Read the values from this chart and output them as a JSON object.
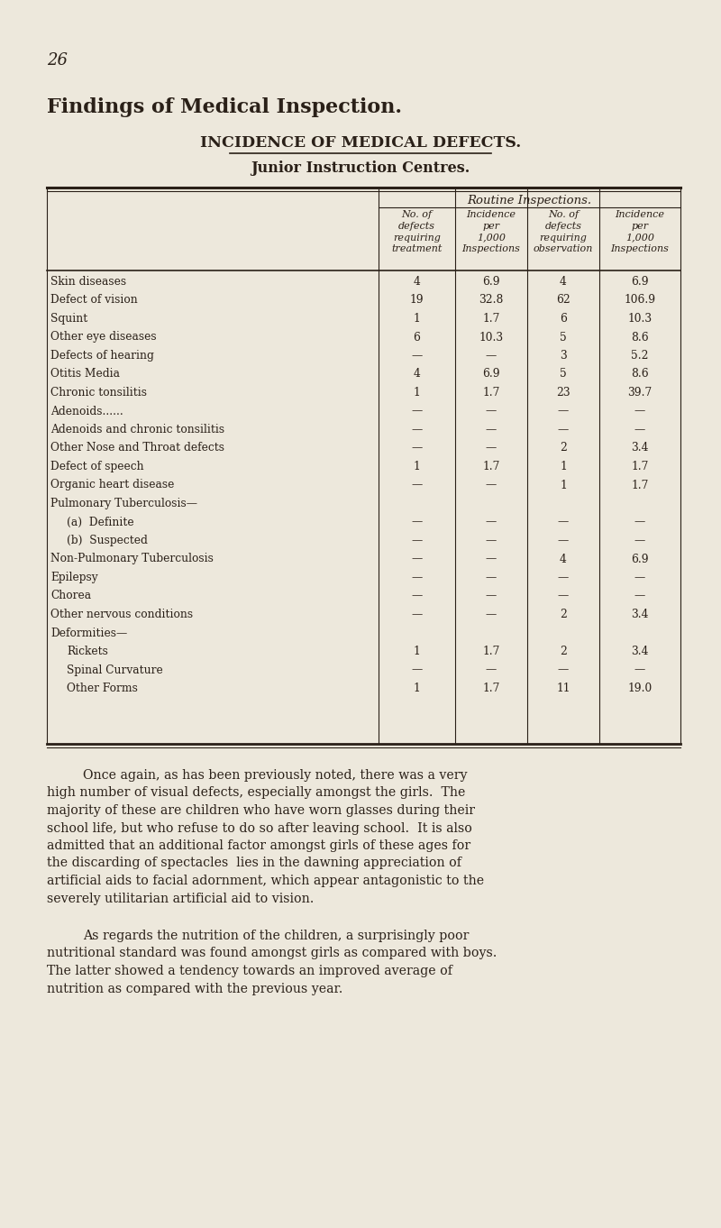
{
  "page_number": "26",
  "title1": "Findings of Medical Inspection.",
  "title2": "INCIDENCE OF MEDICAL DEFECTS.",
  "subtitle": "Junior Instruction Centres.",
  "rows": [
    [
      "Skin diseases",
      "4",
      "6.9",
      "4",
      "6.9"
    ],
    [
      "Defect of vision",
      "19",
      "32.8",
      "62",
      "106.9"
    ],
    [
      "Squint",
      "1",
      "1.7",
      "6",
      "10.3"
    ],
    [
      "Other eye diseases",
      "6",
      "10.3",
      "5",
      "8.6"
    ],
    [
      "Defects of hearing",
      "—",
      "—",
      "3",
      "5.2"
    ],
    [
      "Otitis Media",
      "4",
      "6.9",
      "5",
      "8.6"
    ],
    [
      "Chronic tonsilitis",
      "1",
      "1.7",
      "23",
      "39.7"
    ],
    [
      "Adenoids......",
      "—",
      "—",
      "—",
      "—"
    ],
    [
      "Adenoids and chronic tonsilitis",
      "—",
      "—",
      "—",
      "—"
    ],
    [
      "Other Nose and Throat defects",
      "—",
      "—",
      "2",
      "3.4"
    ],
    [
      "Defect of speech",
      "1",
      "1.7",
      "1",
      "1.7"
    ],
    [
      "Organic heart disease",
      "—",
      "—",
      "1",
      "1.7"
    ],
    [
      "Pulmonary Tuberculosis—",
      "",
      "",
      "",
      ""
    ],
    [
      "    (a)  Definite",
      "—",
      "—",
      "—",
      "—"
    ],
    [
      "    (b)  Suspected",
      "—",
      "—",
      "—",
      "—"
    ],
    [
      "Non-Pulmonary Tuberculosis",
      "—",
      "—",
      "4",
      "6.9"
    ],
    [
      "Epilepsy",
      "—",
      "—",
      "—",
      "—"
    ],
    [
      "Chorea",
      "—",
      "—",
      "—",
      "—"
    ],
    [
      "Other nervous conditions",
      "—",
      "—",
      "2",
      "3.4"
    ],
    [
      "Deformities—",
      "",
      "",
      "",
      ""
    ],
    [
      "    Rickets",
      "1",
      "1.7",
      "2",
      "3.4"
    ],
    [
      "    Spinal Curvature",
      "—",
      "—",
      "—",
      "—"
    ],
    [
      "    Other Forms",
      "1",
      "1.7",
      "11",
      "19.0"
    ]
  ],
  "paragraph1_lines": [
    "Once again, as has been previously noted, there was a very",
    "high number of visual defects, especially amongst the girls.  The",
    "majority of these are children who have worn glasses during their",
    "school life, but who refuse to do so after leaving school.  It is also",
    "admitted that an additional factor amongst girls of these ages for",
    "the discarding of spectacles  lies in the dawning appreciation of",
    "artificial aids to facial adornment, which appear antagonistic to the",
    "severely utilitarian artificial aid to vision."
  ],
  "paragraph2_lines": [
    "As regards the nutrition of the children, a surprisingly poor",
    "nutritional standard was found amongst girls as compared with boys.",
    "The latter showed a tendency towards an improved average of",
    "nutrition as compared with the previous year."
  ],
  "bg_color": "#EDE8DC",
  "text_color": "#2a2018",
  "line_color": "#2a2018",
  "col_subheaders": [
    "No. of\ndefects\nrequiring\ntreatment",
    "Incidence\nper\n1,000\nInspections",
    "No. of\ndefects\nrequiring\nobservation",
    "Incidence\nper\n1,000\nInspections"
  ]
}
